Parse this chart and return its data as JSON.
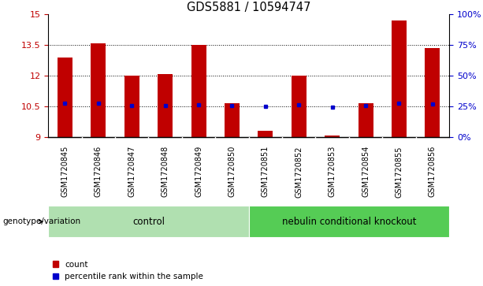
{
  "title": "GDS5881 / 10594747",
  "samples": [
    "GSM1720845",
    "GSM1720846",
    "GSM1720847",
    "GSM1720848",
    "GSM1720849",
    "GSM1720850",
    "GSM1720851",
    "GSM1720852",
    "GSM1720853",
    "GSM1720854",
    "GSM1720855",
    "GSM1720856"
  ],
  "bar_tops": [
    12.9,
    13.6,
    12.0,
    12.1,
    13.5,
    10.65,
    9.3,
    12.0,
    9.1,
    10.65,
    14.7,
    13.35
  ],
  "bar_bottom": 9.0,
  "percentile_values": [
    10.65,
    10.65,
    10.55,
    10.55,
    10.6,
    10.55,
    10.5,
    10.58,
    10.48,
    10.55,
    10.65,
    10.62
  ],
  "ylim": [
    9.0,
    15.0
  ],
  "yticks_left": [
    9,
    10.5,
    12,
    13.5,
    15
  ],
  "yticks_right_vals": [
    0,
    25,
    50,
    75,
    100
  ],
  "yticks_right_pos": [
    9.0,
    10.5,
    12.0,
    13.5,
    15.0
  ],
  "bar_color": "#c00000",
  "percentile_color": "#0000cc",
  "control_color": "#b0e0b0",
  "knockout_color": "#55cc55",
  "gray_label_bg": "#c8c8c8",
  "control_label": "control",
  "knockout_label": "nebulin conditional knockout",
  "genotype_label": "genotype/variation",
  "legend_count": "count",
  "legend_percentile": "percentile rank within the sample",
  "n_control": 6,
  "n_knockout": 6,
  "bar_width": 0.45,
  "background_color": "#ffffff",
  "tick_label_fontsize": 7.0,
  "title_fontsize": 10.5
}
